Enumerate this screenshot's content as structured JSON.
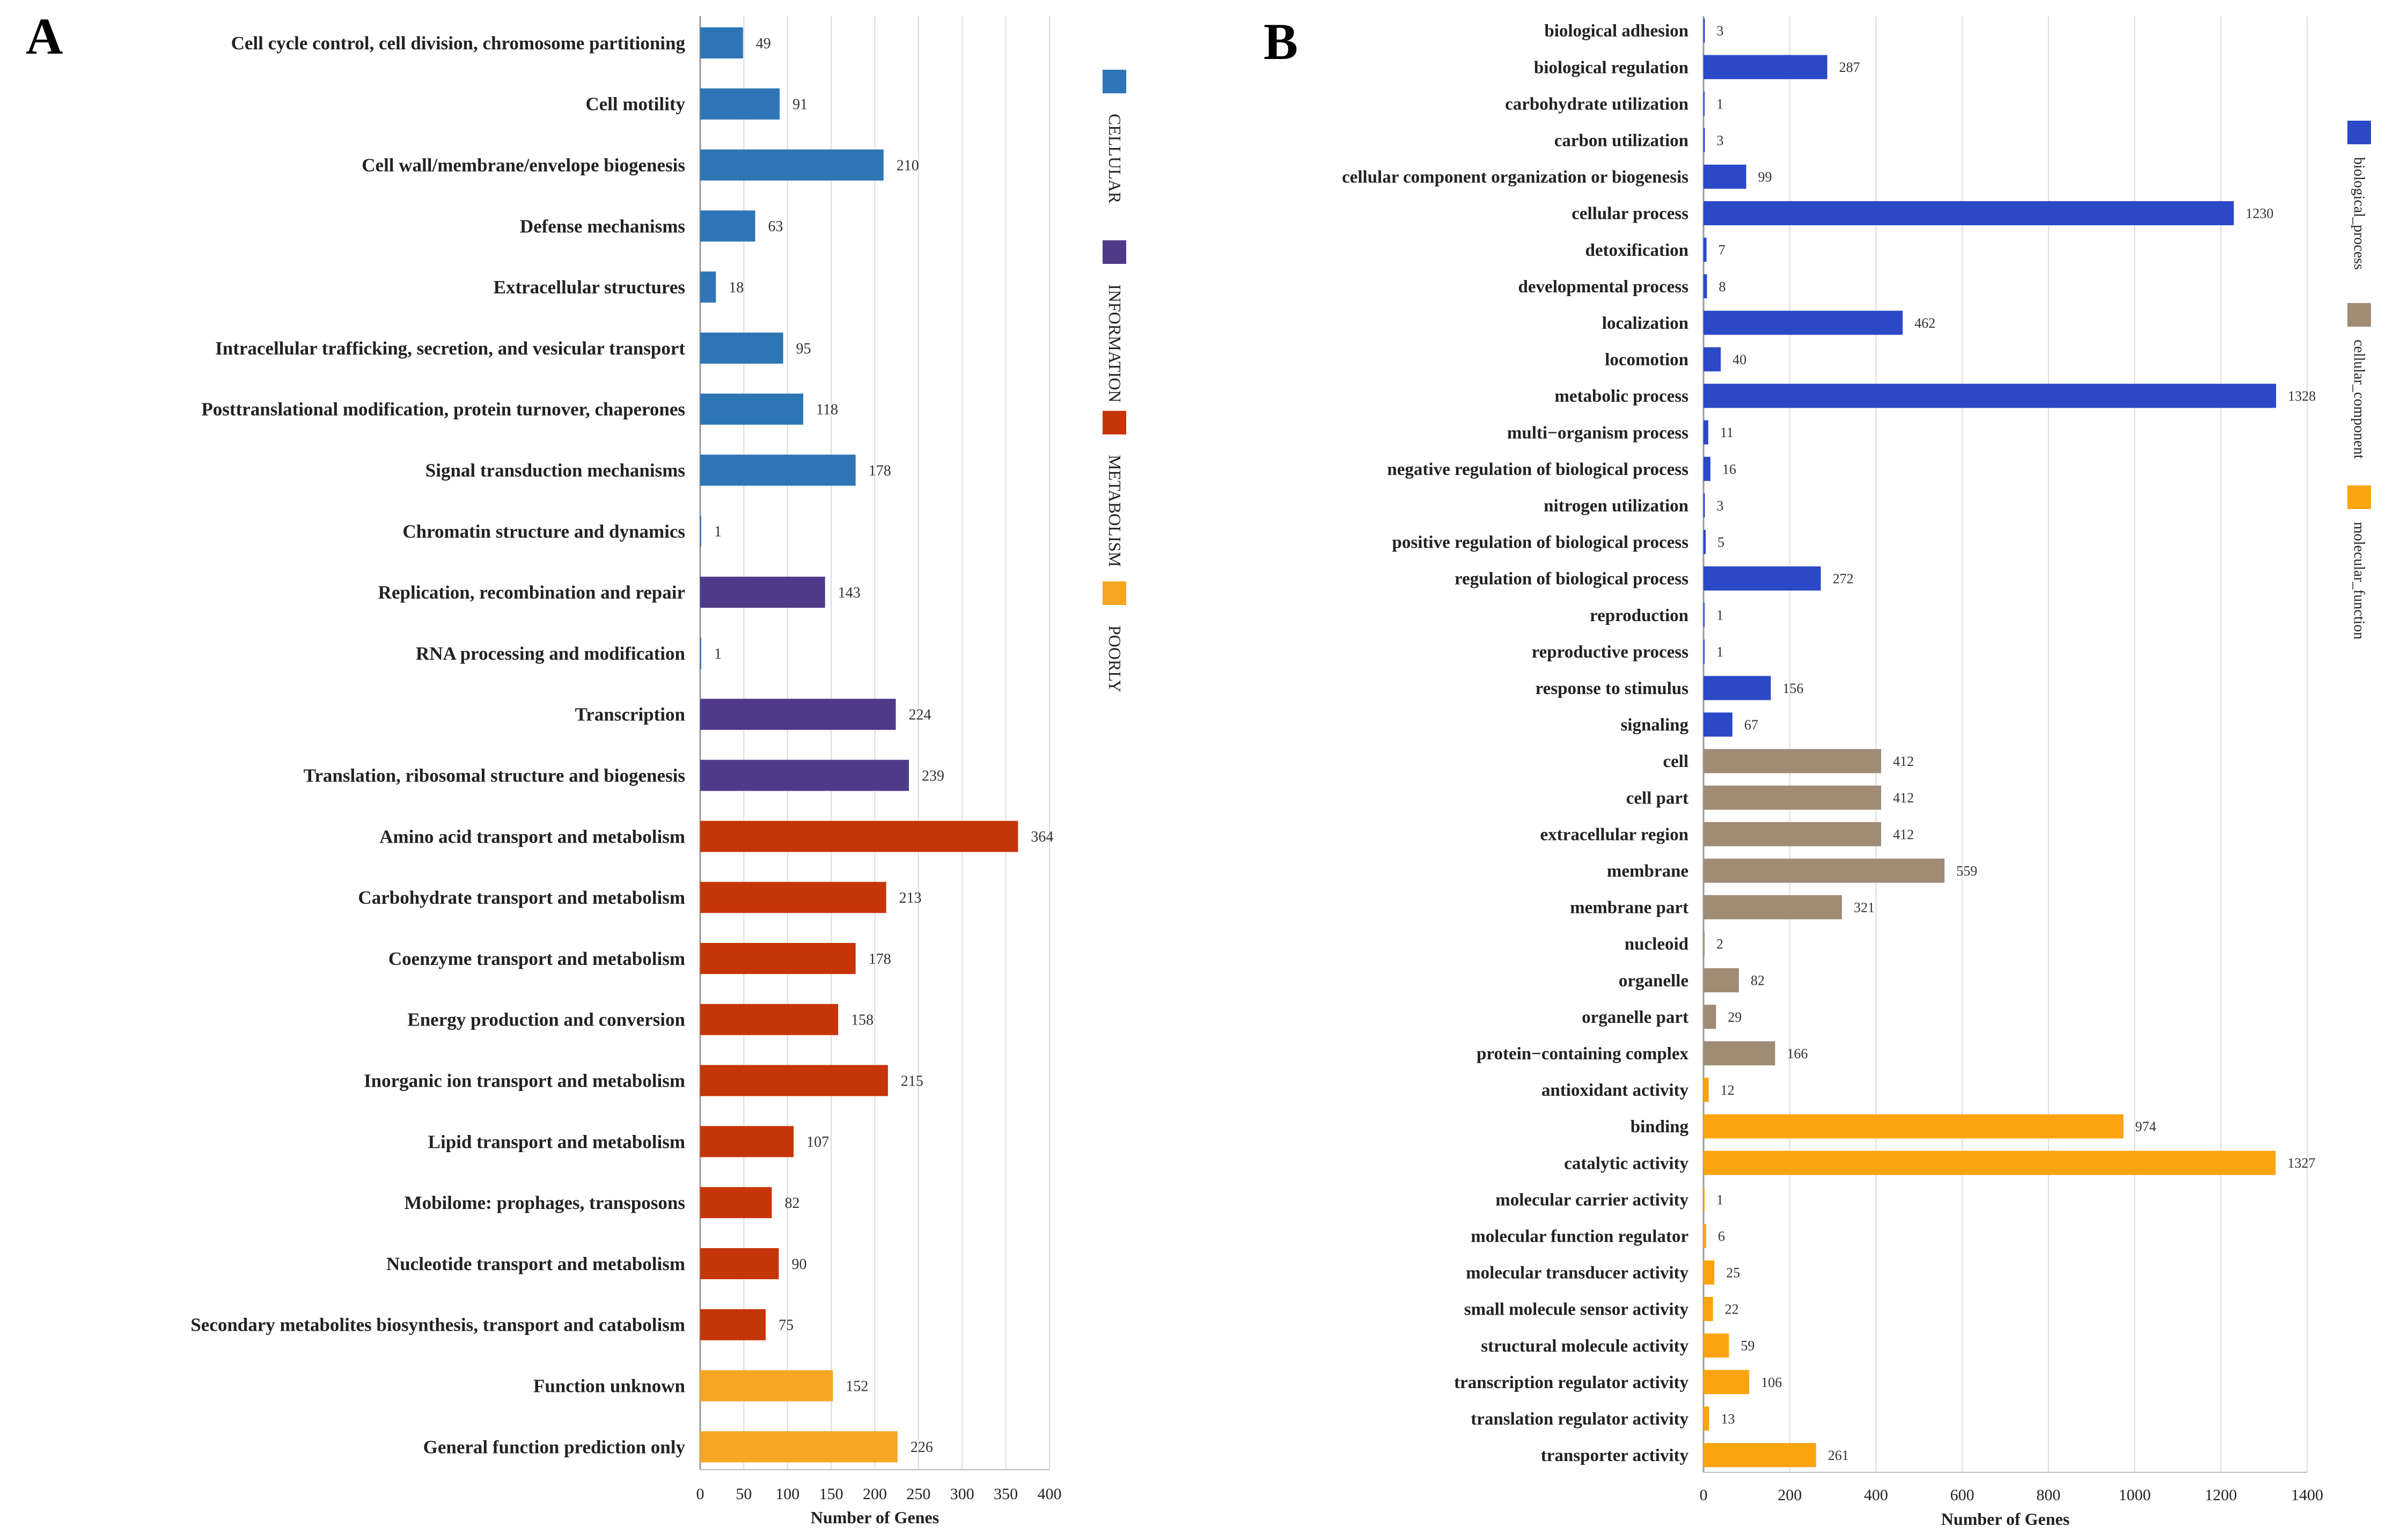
{
  "colors": {
    "CELLULAR": "#2e75b6",
    "INFORMATION": "#4f3a8a",
    "METABOLISM": "#c63508",
    "POORLY": "#f5a623",
    "biological_process": "#2b49c6",
    "cellular_component": "#a08b75",
    "molecular_function": "#fba40f"
  },
  "chart_data": [
    {
      "panel": "A",
      "type": "bar",
      "orientation": "horizontal",
      "xlabel": "Number of Genes",
      "xlim": [
        0,
        400
      ],
      "xticks": [
        0,
        50,
        100,
        150,
        200,
        250,
        300,
        350,
        400
      ],
      "grid": true,
      "legend": {
        "position": "right",
        "orientation": "vertical",
        "entries": [
          "CELLULAR",
          "INFORMATION",
          "METABOLISM",
          "POORLY"
        ]
      },
      "categories": [
        "Cell cycle control, cell division, chromosome partitioning",
        "Cell motility",
        "Cell wall/membrane/envelope biogenesis",
        "Defense mechanisms",
        "Extracellular structures",
        "Intracellular trafficking, secretion, and vesicular transport",
        "Posttranslational modification, protein turnover, chaperones",
        "Signal transduction mechanisms",
        "Chromatin structure and dynamics",
        "Replication, recombination and repair",
        "RNA processing and modification",
        "Transcription",
        "Translation, ribosomal structure and biogenesis",
        "Amino acid transport and metabolism",
        "Carbohydrate transport and metabolism",
        "Coenzyme transport and metabolism",
        "Energy production and conversion",
        "Inorganic ion transport and metabolism",
        "Lipid transport and metabolism",
        "Mobilome: prophages, transposons",
        "Nucleotide transport and metabolism",
        "Secondary metabolites biosynthesis, transport and catabolism",
        "Function unknown",
        "General function prediction only"
      ],
      "values": [
        49,
        91,
        210,
        63,
        18,
        95,
        118,
        178,
        1,
        143,
        1,
        224,
        239,
        364,
        213,
        178,
        158,
        215,
        107,
        82,
        90,
        75,
        152,
        226
      ],
      "groups": [
        "CELLULAR",
        "CELLULAR",
        "CELLULAR",
        "CELLULAR",
        "CELLULAR",
        "CELLULAR",
        "CELLULAR",
        "CELLULAR",
        "CELLULAR",
        "INFORMATION",
        "CELLULAR",
        "INFORMATION",
        "INFORMATION",
        "METABOLISM",
        "METABOLISM",
        "METABOLISM",
        "METABOLISM",
        "METABOLISM",
        "METABOLISM",
        "METABOLISM",
        "METABOLISM",
        "METABOLISM",
        "POORLY",
        "POORLY"
      ]
    },
    {
      "panel": "B",
      "type": "bar",
      "orientation": "horizontal",
      "xlabel": "Number of Genes",
      "xlim": [
        0,
        1400
      ],
      "xticks": [
        0,
        200,
        400,
        600,
        800,
        1000,
        1200,
        1400
      ],
      "grid": true,
      "legend": {
        "position": "right",
        "orientation": "vertical",
        "entries": [
          "biological_process",
          "cellular_component",
          "molecular_function"
        ]
      },
      "categories": [
        "biological adhesion",
        "biological regulation",
        "carbohydrate utilization",
        "carbon utilization",
        "cellular component organization or biogenesis",
        "cellular process",
        "detoxification",
        "developmental process",
        "localization",
        "locomotion",
        "metabolic process",
        "multi−organism process",
        "negative regulation of biological process",
        "nitrogen utilization",
        "positive regulation of biological process",
        "regulation of biological process",
        "reproduction",
        "reproductive process",
        "response to stimulus",
        "signaling",
        "cell",
        "cell part",
        "extracellular region",
        "membrane",
        "membrane part",
        "nucleoid",
        "organelle",
        "organelle part",
        "protein−containing complex",
        "antioxidant activity",
        "binding",
        "catalytic activity",
        "molecular carrier activity",
        "molecular function regulator",
        "molecular transducer activity",
        "small molecule sensor activity",
        "structural molecule activity",
        "transcription regulator activity",
        "translation regulator activity",
        "transporter activity"
      ],
      "values": [
        3,
        287,
        1,
        3,
        99,
        1230,
        7,
        8,
        462,
        40,
        1328,
        11,
        16,
        3,
        5,
        272,
        1,
        1,
        156,
        67,
        412,
        412,
        412,
        559,
        321,
        2,
        82,
        29,
        166,
        12,
        974,
        1327,
        1,
        6,
        25,
        22,
        59,
        106,
        13,
        261
      ],
      "groups": [
        "biological_process",
        "biological_process",
        "biological_process",
        "biological_process",
        "biological_process",
        "biological_process",
        "biological_process",
        "biological_process",
        "biological_process",
        "biological_process",
        "biological_process",
        "biological_process",
        "biological_process",
        "biological_process",
        "biological_process",
        "biological_process",
        "biological_process",
        "biological_process",
        "biological_process",
        "biological_process",
        "cellular_component",
        "cellular_component",
        "cellular_component",
        "cellular_component",
        "cellular_component",
        "cellular_component",
        "cellular_component",
        "cellular_component",
        "cellular_component",
        "molecular_function",
        "molecular_function",
        "molecular_function",
        "molecular_function",
        "molecular_function",
        "molecular_function",
        "molecular_function",
        "molecular_function",
        "molecular_function",
        "molecular_function",
        "molecular_function"
      ]
    }
  ]
}
